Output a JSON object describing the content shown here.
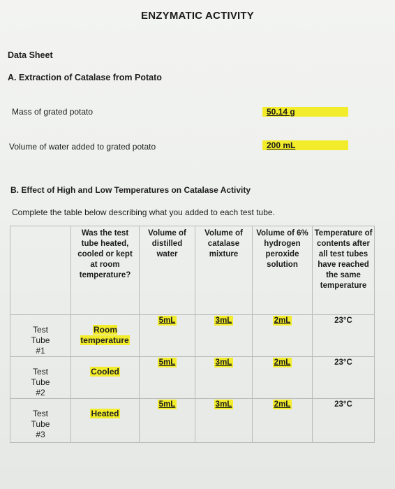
{
  "document": {
    "title": "ENZYMATIC ACTIVITY",
    "data_sheet": "Data Sheet",
    "section_a": {
      "heading": "A. Extraction of Catalase from Potato",
      "mass_label": "Mass of grated potato",
      "mass_value": "50.14 g",
      "water_label": "Volume of water added to grated potato",
      "water_value": "200 mL"
    },
    "section_b": {
      "heading": "B. Effect of High and Low Temperatures on Catalase Activity",
      "instruction": "Complete the table below describing what you added to each test tube."
    },
    "table": {
      "columns": [
        "",
        "Was the test tube heated, cooled or kept at room temperature?",
        "Volume of distilled water",
        "Volume of catalase mixture",
        "Volume of 6% hydrogen peroxide solution",
        "Temperature of contents after all test tubes have reached the same temperature"
      ],
      "rows": [
        {
          "tube": "Test Tube #1",
          "condition": "Room temperature",
          "water": "5mL",
          "catalase": "3mL",
          "peroxide": "2mL",
          "temperature": "23°C"
        },
        {
          "tube": "Test Tube #2",
          "condition": "Cooled",
          "water": "5mL",
          "catalase": "3mL",
          "peroxide": "2mL",
          "temperature": "23°C"
        },
        {
          "tube": "Test Tube #3",
          "condition": "Heated",
          "water": "5mL",
          "catalase": "3mL",
          "peroxide": "2mL",
          "temperature": "23°C"
        }
      ]
    },
    "highlight_color": "#f2ec2a"
  }
}
